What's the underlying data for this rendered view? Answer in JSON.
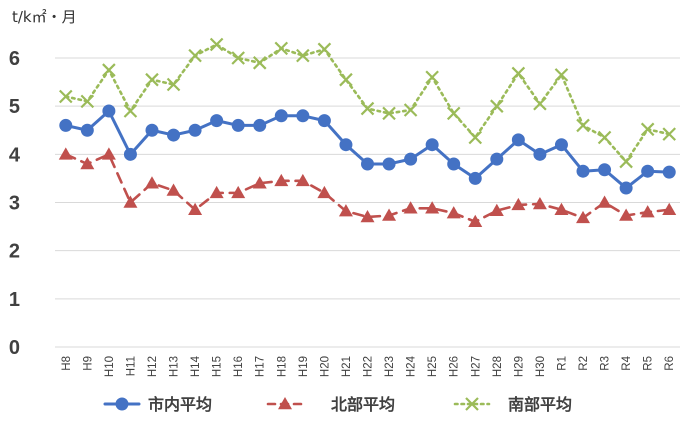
{
  "chart_data": {
    "type": "line",
    "title": "",
    "unit_label": "t/k㎡・月",
    "xlabel": "",
    "ylabel": "",
    "ylim": [
      0,
      6
    ],
    "yticks": [
      0,
      1,
      2,
      3,
      4,
      5,
      6
    ],
    "grid": true,
    "legend_position": "bottom",
    "categories": [
      "H8",
      "H9",
      "H10",
      "H11",
      "H12",
      "H13",
      "H14",
      "H15",
      "H16",
      "H17",
      "H18",
      "H19",
      "H20",
      "H21",
      "H22",
      "H23",
      "H24",
      "H25",
      "H26",
      "H27",
      "H28",
      "H29",
      "H30",
      "R1",
      "R2",
      "R3",
      "R4",
      "R5",
      "R6"
    ],
    "series": [
      {
        "name": "市内平均",
        "color": "#4472c4",
        "line_style": "solid",
        "marker": "circle",
        "values": [
          4.6,
          4.5,
          4.9,
          4.0,
          4.5,
          4.4,
          4.5,
          4.7,
          4.6,
          4.6,
          4.8,
          4.8,
          4.7,
          4.2,
          3.8,
          3.8,
          3.9,
          4.2,
          3.8,
          3.5,
          3.9,
          4.3,
          4.0,
          4.2,
          3.65,
          3.68,
          3.3,
          3.65,
          3.63
        ]
      },
      {
        "name": "北部平均",
        "color": "#c0504d",
        "line_style": "dashed",
        "marker": "triangle",
        "values": [
          4.0,
          3.8,
          4.0,
          3.0,
          3.4,
          3.25,
          2.85,
          3.2,
          3.2,
          3.4,
          3.45,
          3.45,
          3.2,
          2.82,
          2.7,
          2.73,
          2.88,
          2.88,
          2.78,
          2.6,
          2.83,
          2.95,
          2.97,
          2.85,
          2.68,
          3.0,
          2.73,
          2.8,
          2.85
        ]
      },
      {
        "name": "南部平均",
        "color": "#9bbb59",
        "line_style": "dotted",
        "marker": "x",
        "values": [
          5.2,
          5.1,
          5.75,
          4.9,
          5.55,
          5.45,
          6.05,
          6.28,
          6.0,
          5.9,
          6.2,
          6.05,
          6.18,
          5.55,
          4.95,
          4.85,
          4.92,
          5.6,
          4.85,
          4.35,
          5.0,
          5.68,
          5.05,
          5.65,
          4.6,
          4.35,
          3.85,
          4.52,
          4.42
        ]
      }
    ]
  }
}
